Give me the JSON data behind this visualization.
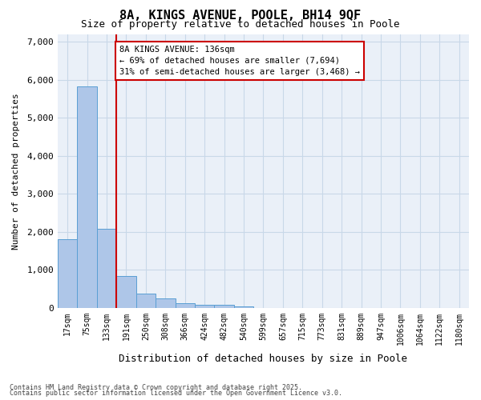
{
  "title": "8A, KINGS AVENUE, POOLE, BH14 9QF",
  "subtitle": "Size of property relative to detached houses in Poole",
  "xlabel": "Distribution of detached houses by size in Poole",
  "ylabel": "Number of detached properties",
  "bin_labels": [
    "17sqm",
    "75sqm",
    "133sqm",
    "191sqm",
    "250sqm",
    "308sqm",
    "366sqm",
    "424sqm",
    "482sqm",
    "540sqm",
    "599sqm",
    "657sqm",
    "715sqm",
    "773sqm",
    "831sqm",
    "889sqm",
    "947sqm",
    "1006sqm",
    "1064sqm",
    "1122sqm",
    "1180sqm"
  ],
  "bar_values": [
    1800,
    5820,
    2090,
    840,
    370,
    240,
    130,
    90,
    90,
    30,
    0,
    0,
    0,
    0,
    0,
    0,
    0,
    0,
    0,
    0,
    0
  ],
  "bar_color": "#aec6e8",
  "bar_edge_color": "#5a9fd4",
  "property_line_color": "#cc0000",
  "annotation_text": "8A KINGS AVENUE: 136sqm\n← 69% of detached houses are smaller (7,694)\n31% of semi-detached houses are larger (3,468) →",
  "annotation_box_color": "#ffffff",
  "annotation_box_edge": "#cc0000",
  "ylim": [
    0,
    7200
  ],
  "yticks": [
    0,
    1000,
    2000,
    3000,
    4000,
    5000,
    6000,
    7000
  ],
  "grid_color": "#c8d8e8",
  "bg_color": "#eaf0f8",
  "footer_line1": "Contains HM Land Registry data © Crown copyright and database right 2025.",
  "footer_line2": "Contains public sector information licensed under the Open Government Licence v3.0."
}
